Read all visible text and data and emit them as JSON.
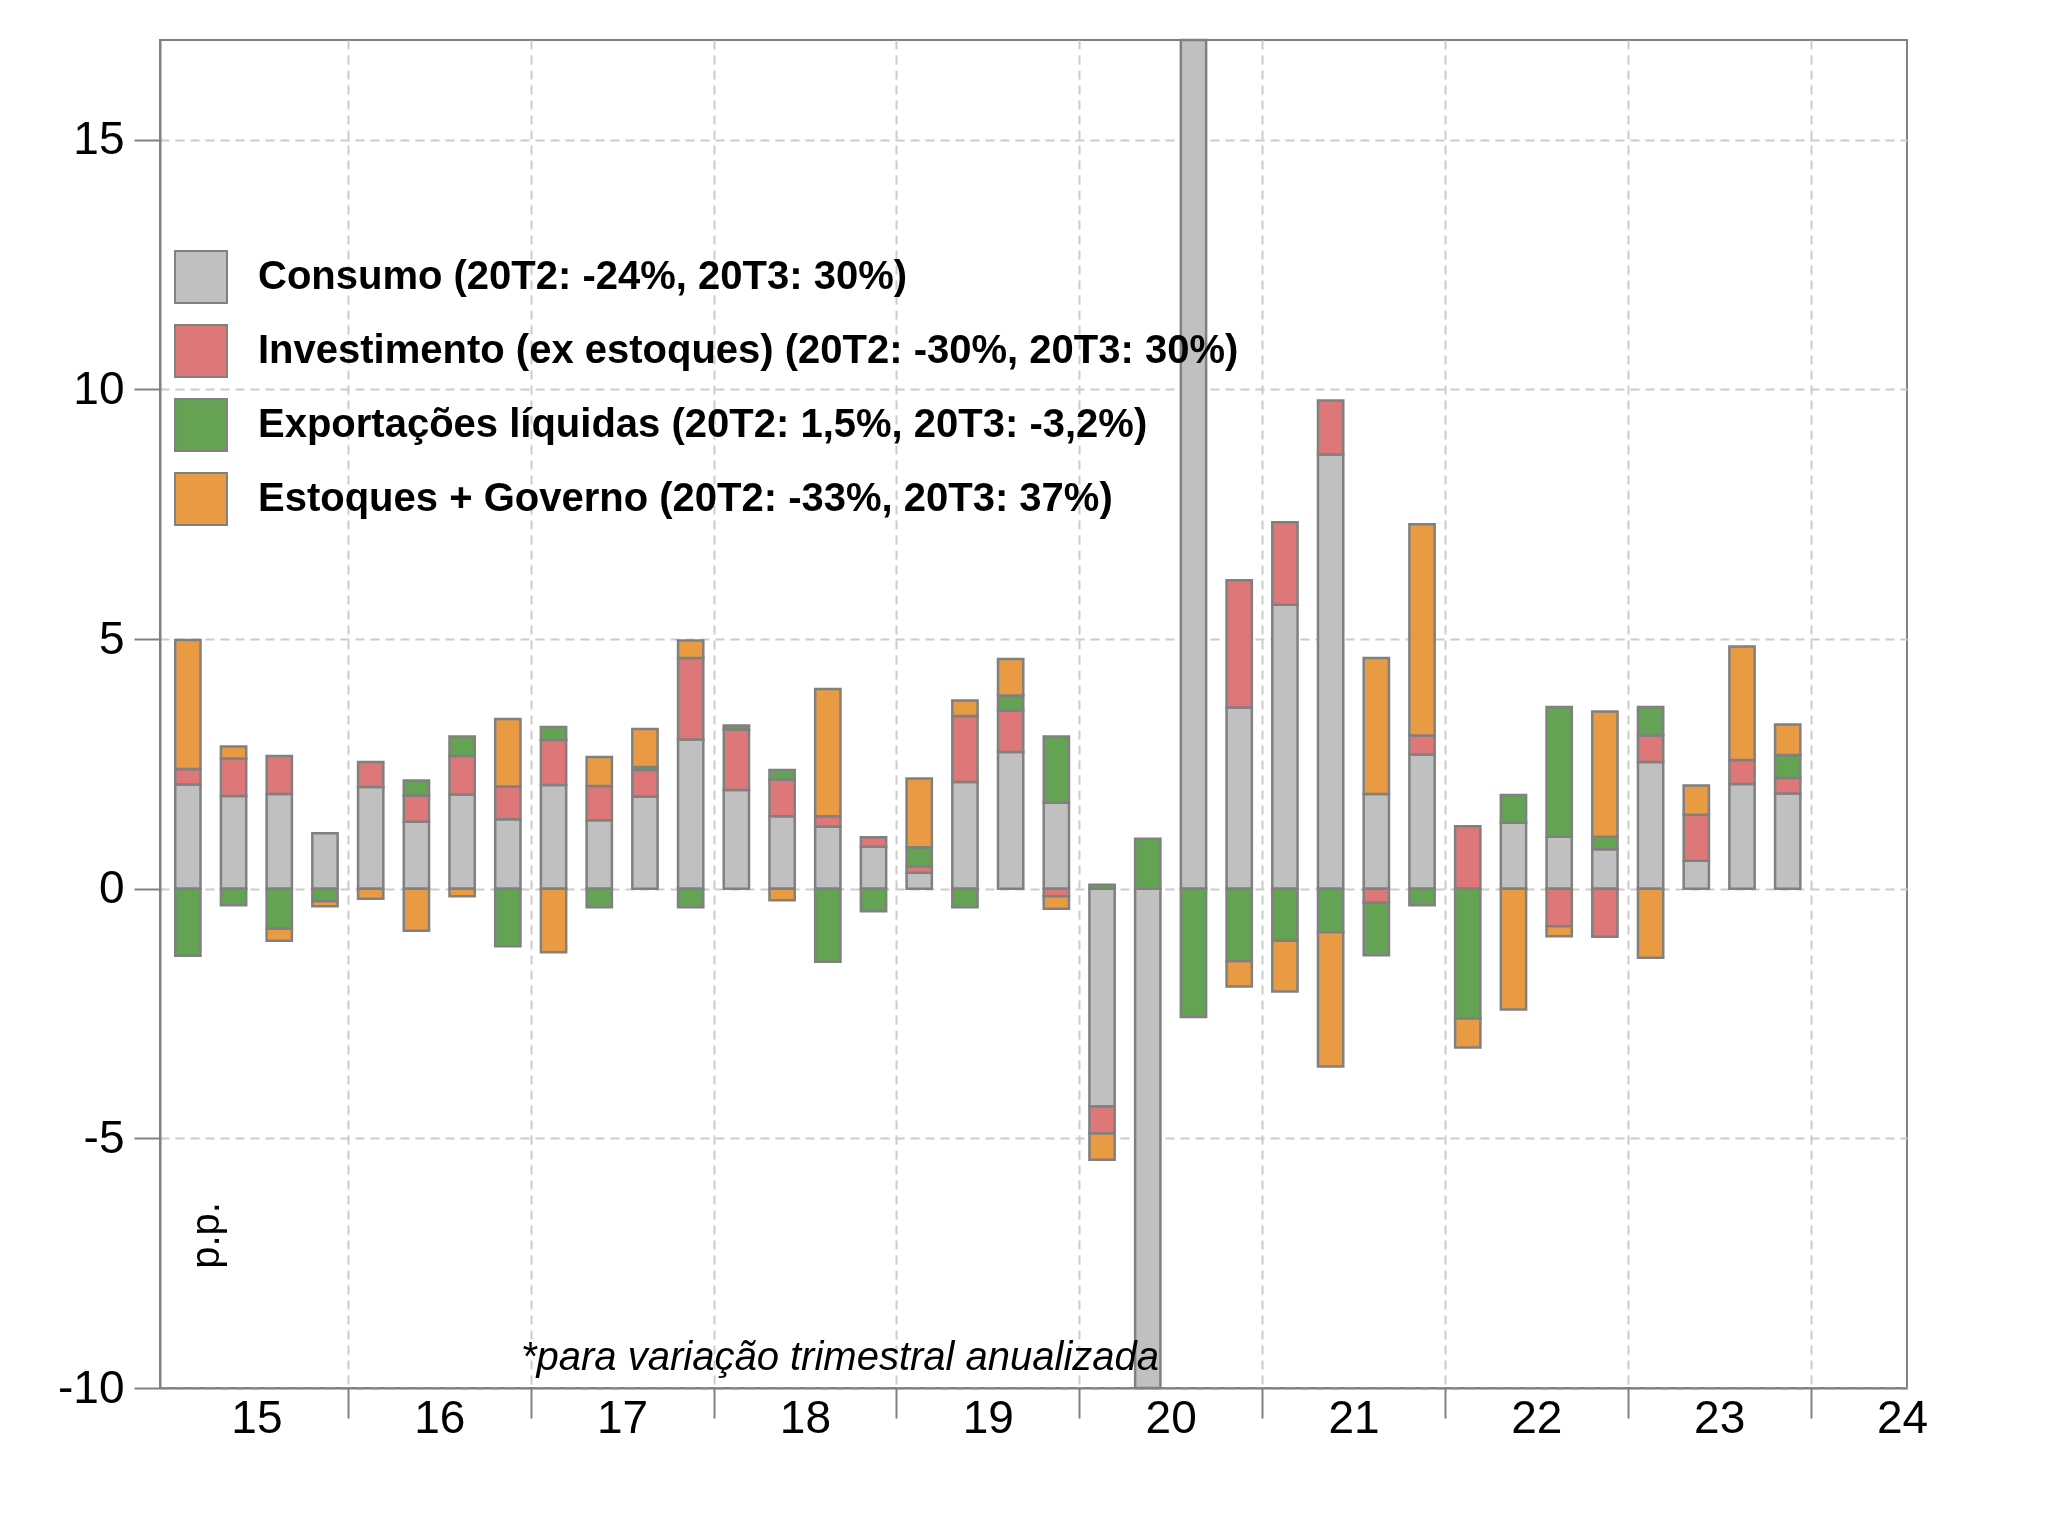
{
  "chart_data": {
    "type": "bar",
    "stacked": true,
    "ylabel": "p.p.",
    "annotations": [
      "*para variação trimestral anualizada"
    ],
    "x": [
      14.625,
      14.875,
      15.125,
      15.375,
      15.625,
      15.875,
      16.125,
      16.375,
      16.625,
      16.875,
      17.125,
      17.375,
      17.625,
      17.875,
      18.125,
      18.375,
      18.625,
      18.875,
      19.125,
      19.375,
      19.625,
      19.875,
      20.125,
      20.375,
      20.625,
      20.875,
      21.125,
      21.375,
      21.625,
      21.875,
      22.125,
      22.375,
      22.625,
      22.875,
      23.125,
      23.375
    ],
    "series": [
      {
        "name": "Consumo (20T2: -24%, 20T3: 30%)",
        "color": "#c0c0c0",
        "values": [
          2.09,
          1.86,
          1.9,
          1.11,
          2.04,
          1.34,
          1.89,
          1.39,
          2.08,
          1.37,
          1.85,
          2.99,
          1.98,
          1.45,
          1.24,
          0.84,
          0.32,
          2.14,
          2.74,
          1.72,
          -4.36,
          -10,
          17,
          3.63,
          5.69,
          8.7,
          1.9,
          2.69,
          null,
          1.32,
          1.04,
          0.79,
          2.54,
          0.56,
          2.1,
          1.91
        ]
      },
      {
        "name": "Investimento (ex estoques) (20T2: -30%, 20T3: 30%)",
        "color": "#de7777",
        "values": [
          0.31,
          0.75,
          0.76,
          null,
          0.5,
          0.53,
          0.77,
          0.66,
          0.9,
          0.69,
          0.53,
          1.63,
          1.21,
          0.74,
          0.21,
          0.19,
          0.13,
          1.32,
          0.83,
          -0.15,
          -0.54,
          null,
          null,
          2.55,
          1.65,
          1.08,
          -0.28,
          0.38,
          1.25,
          null,
          -0.75,
          -0.96,
          0.53,
          0.92,
          0.48,
          0.31
        ]
      },
      {
        "name": "Exportações líquidas (20T2: 1,5%, 20T3: -3,2%)",
        "color": "#63a353",
        "values": [
          -1.34,
          -0.33,
          -0.8,
          -0.25,
          null,
          0.3,
          0.39,
          -1.15,
          0.26,
          -0.37,
          0.06,
          -0.37,
          0.08,
          0.19,
          -1.46,
          -0.45,
          0.38,
          -0.37,
          0.3,
          1.33,
          0.08,
          1.0,
          -2.57,
          -1.45,
          -1.04,
          -0.87,
          -1.05,
          -0.33,
          -2.6,
          0.56,
          2.6,
          0.25,
          0.57,
          null,
          null,
          0.46
        ]
      },
      {
        "name": "Estoques + Governo (20T2: -33%, 20T3: 37%)",
        "color": "#e89b43",
        "values": [
          2.58,
          0.24,
          -0.24,
          -0.1,
          -0.2,
          -0.84,
          -0.15,
          1.35,
          -1.27,
          0.58,
          0.76,
          0.35,
          null,
          -0.23,
          2.55,
          null,
          1.38,
          0.31,
          0.73,
          -0.25,
          -0.53,
          null,
          null,
          -0.51,
          -1.02,
          -2.69,
          2.72,
          4.23,
          -0.58,
          -2.42,
          -0.2,
          2.51,
          -1.38,
          0.59,
          2.27,
          0.61
        ]
      }
    ],
    "xlim": [
      14.5,
      24
    ],
    "xticks": [
      15,
      {
        "value": 15.5,
        "label": null
      },
      16,
      {
        "value": 16.5,
        "label": null
      },
      17,
      {
        "value": 17.5,
        "label": null
      },
      18,
      {
        "value": 18.5,
        "label": null
      },
      19,
      {
        "value": 19.5,
        "label": null
      },
      20,
      {
        "value": 20.5,
        "label": null
      },
      21,
      {
        "value": 21.5,
        "label": null
      },
      22,
      {
        "value": 22.5,
        "label": null
      },
      23,
      {
        "value": 23.5,
        "label": null
      },
      24
    ],
    "ylim": [
      -10,
      17
    ],
    "yticks": [
      -10,
      -5,
      0,
      5,
      10,
      15
    ],
    "grid": true,
    "legend": "top left"
  }
}
